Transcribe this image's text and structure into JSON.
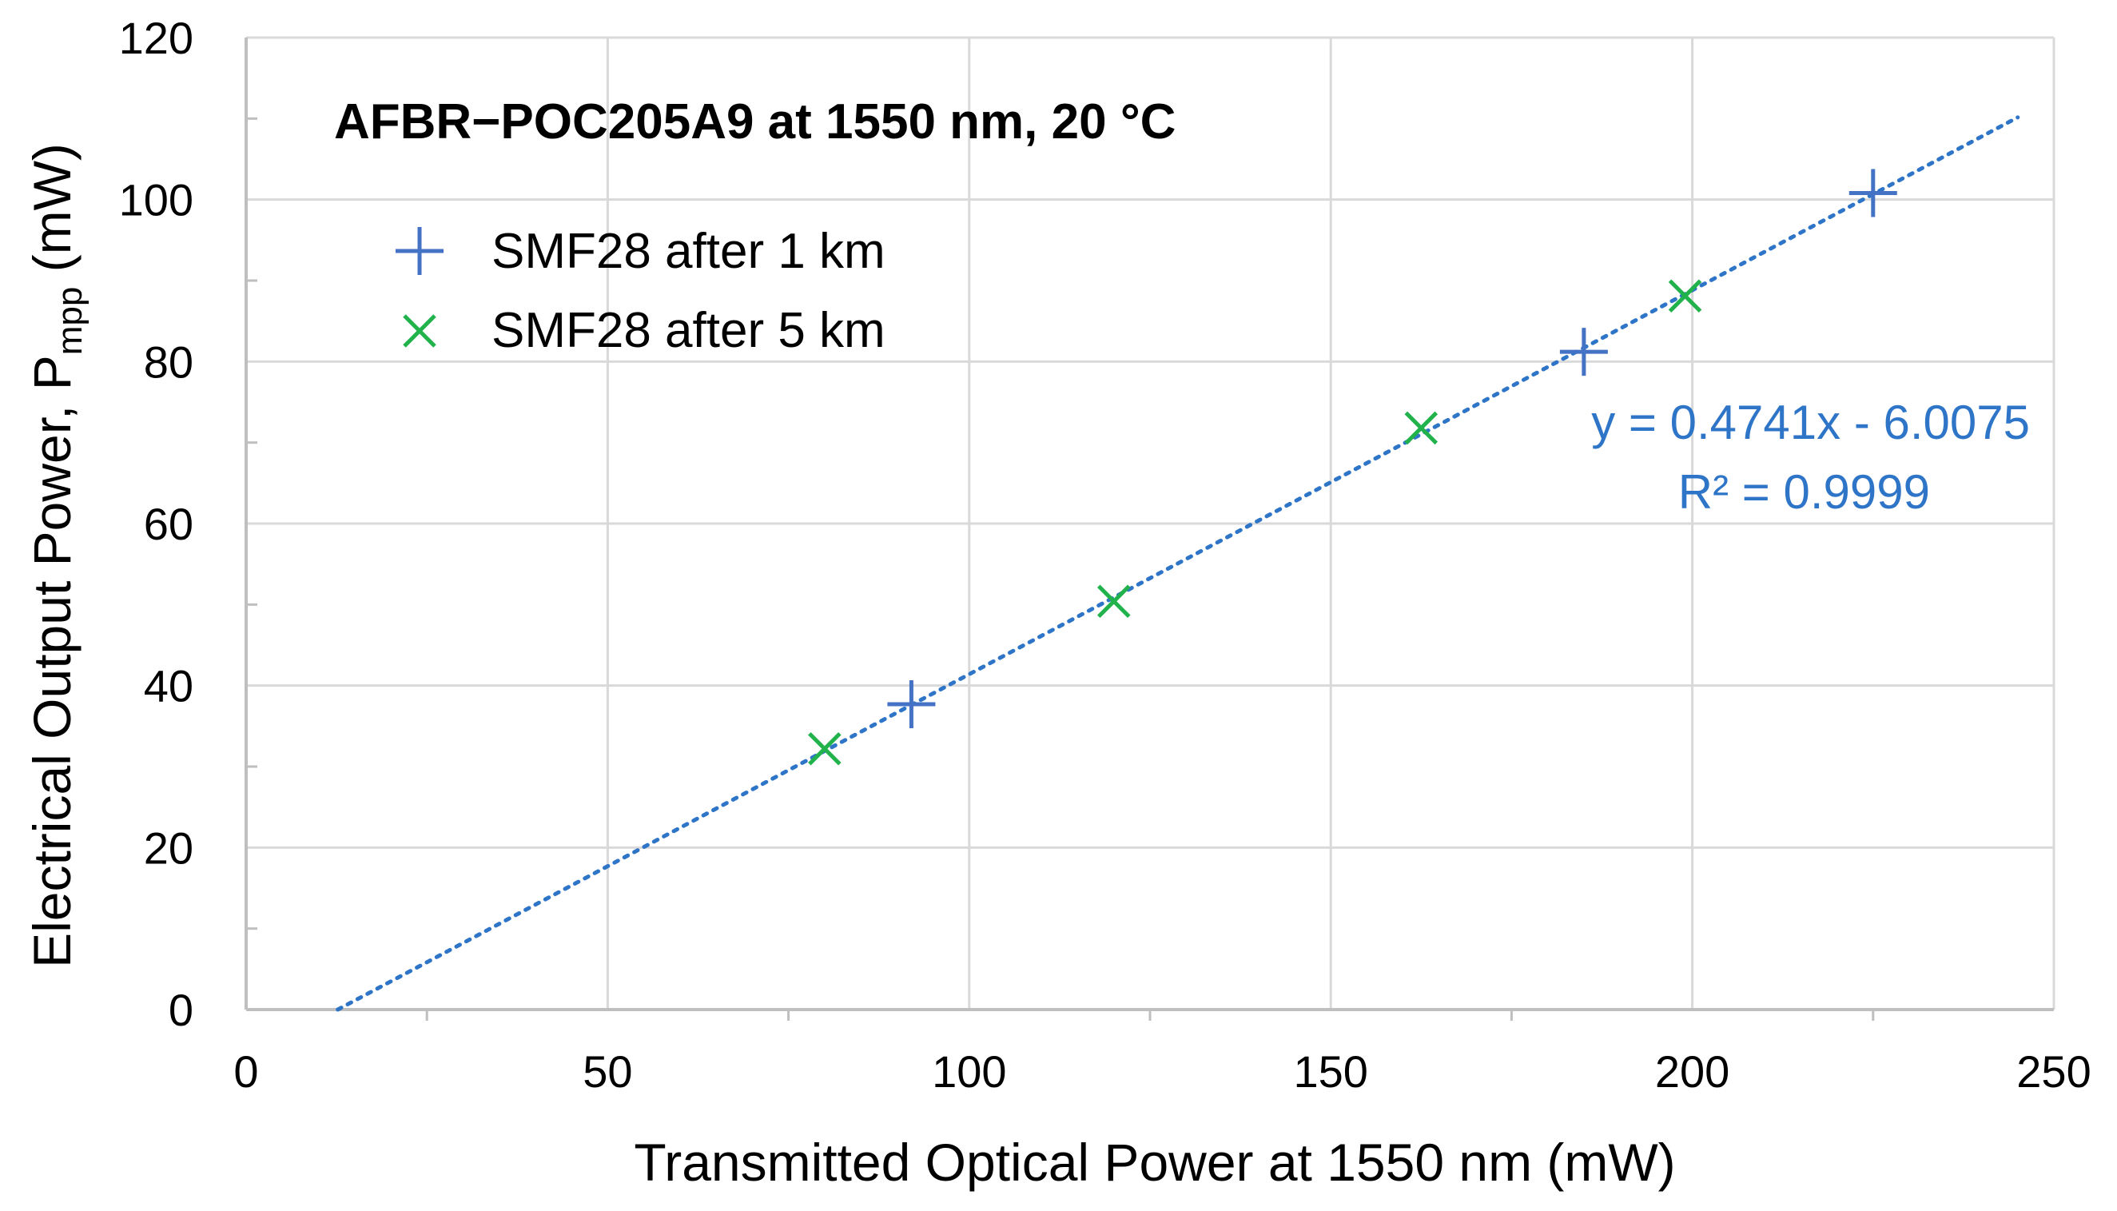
{
  "chart_data": {
    "type": "scatter",
    "title": "AFBR−POC205A9 at 1550 nm, 20 °C",
    "xlabel": "Transmitted Optical Power at 1550 nm (mW)",
    "ylabel_main": "Electrical Output Power,  P",
    "ylabel_sub": "mpp",
    "ylabel_tail": " (mW)",
    "xlim": [
      0,
      250
    ],
    "ylim": [
      0,
      120
    ],
    "x_ticks": [
      0,
      50,
      100,
      150,
      200,
      250
    ],
    "y_ticks": [
      0,
      20,
      40,
      60,
      80,
      100,
      120
    ],
    "grid": true,
    "legend_position": "top-left",
    "series": [
      {
        "name": "SMF28 after 1 km",
        "marker": "plus",
        "color": "#4472C4",
        "points": [
          [
            92,
            37.7
          ],
          [
            185,
            81.2
          ],
          [
            225,
            100.8
          ]
        ]
      },
      {
        "name": "SMF28 after 5 km",
        "marker": "x",
        "color": "#21B24B",
        "points": [
          [
            80,
            32.2
          ],
          [
            120,
            50.4
          ],
          [
            162.5,
            71.8
          ],
          [
            199,
            88.1
          ]
        ]
      }
    ],
    "trendline": {
      "type": "linear",
      "slope": 0.4741,
      "intercept": -6.0075,
      "x_range": [
        12.67,
        245
      ],
      "color": "#2E75C8",
      "style": "dotted",
      "equation": "y = 0.4741x - 6.0075",
      "r_squared": "R² = 0.9999"
    }
  }
}
